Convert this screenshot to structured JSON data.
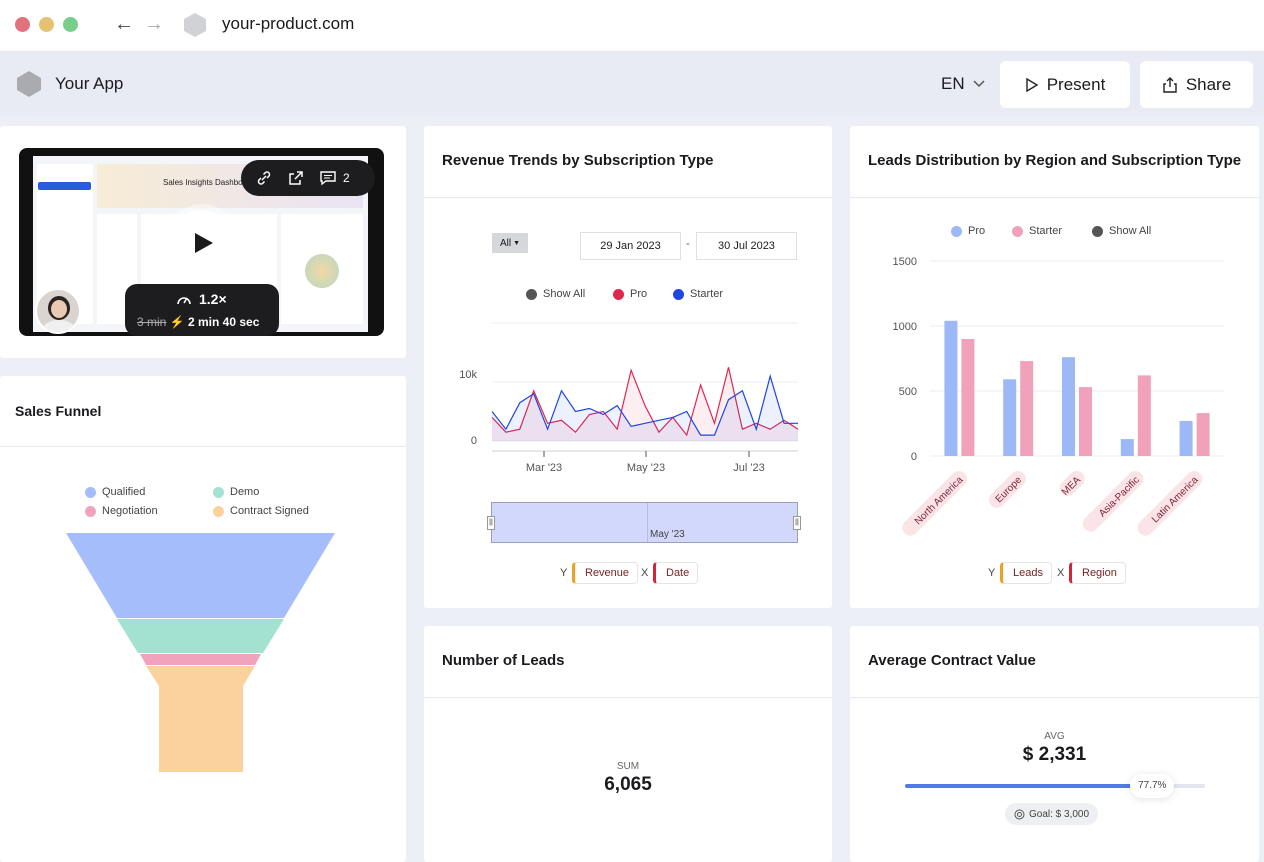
{
  "browser": {
    "url": "your-product.com"
  },
  "header": {
    "app_name": "Your App",
    "language": "EN",
    "present_label": "Present",
    "share_label": "Share"
  },
  "video": {
    "speed": "1.2×",
    "original_duration": "3 min",
    "new_duration": "2 min 40 sec",
    "comment_count": "2",
    "thumb_title": "Sales Insights Dashbo"
  },
  "funnel": {
    "title": "Sales Funnel",
    "legend": [
      {
        "label": "Qualified",
        "color": "#a5bdfb"
      },
      {
        "label": "Demo",
        "color": "#a3e1d1"
      },
      {
        "label": "Negotiation",
        "color": "#f0a3bd"
      },
      {
        "label": "Contract Signed",
        "color": "#fbd19e"
      }
    ]
  },
  "revenue": {
    "title": "Revenue Trends by Subscription Type",
    "filter": "All",
    "date_from": "29 Jan 2023",
    "date_sep": "-",
    "date_to": "30 Jul 2023",
    "legend": [
      {
        "label": "Show All",
        "color": "#555555"
      },
      {
        "label": "Pro",
        "color": "#e0284f"
      },
      {
        "label": "Starter",
        "color": "#1f46e0"
      }
    ],
    "brush_label": "May '23",
    "y_axis_letter": "Y",
    "y_field": "Revenue",
    "x_axis_letter": "X",
    "x_field": "Date"
  },
  "leads_region": {
    "title": "Leads Distribution by Region and Subscription Type",
    "legend": [
      {
        "label": "Pro",
        "color": "#9db8f7"
      },
      {
        "label": "Starter",
        "color": "#f1a1b9"
      },
      {
        "label": "Show All",
        "color": "#555555"
      }
    ],
    "y_axis_letter": "Y",
    "y_field": "Leads",
    "x_axis_letter": "X",
    "x_field": "Region"
  },
  "num_leads": {
    "title": "Number of Leads",
    "agg": "SUM",
    "value": "6,065"
  },
  "avg_contract": {
    "title": "Average Contract Value",
    "agg": "AVG",
    "value": "$ 2,331",
    "progress_label": "77.7%",
    "progress": 0.777,
    "goal": "Goal: $ 3,000"
  },
  "chart_data": [
    {
      "type": "line",
      "title": "Revenue Trends by Subscription Type",
      "x_tick_labels": [
        "Mar '23",
        "May '23",
        "Jul '23"
      ],
      "y_tick_labels": [
        "10k",
        "0"
      ],
      "ylim": [
        0,
        20000
      ],
      "series": [
        {
          "name": "Pro",
          "color": "#e0284f",
          "values": [
            4000,
            1500,
            2000,
            8500,
            3000,
            3500,
            1500,
            4500,
            5000,
            2000,
            12000,
            6000,
            1500,
            4000,
            1000,
            9500,
            3000,
            12500,
            2000,
            3000,
            2000,
            3500,
            2000
          ]
        },
        {
          "name": "Starter",
          "color": "#1f46e0",
          "values": [
            5000,
            2000,
            6500,
            8000,
            2000,
            8500,
            5000,
            5500,
            4500,
            6000,
            2500,
            3000,
            3500,
            4000,
            5000,
            1000,
            1000,
            7000,
            8500,
            2000,
            11000,
            3000,
            3000
          ]
        }
      ]
    },
    {
      "type": "bar",
      "title": "Leads Distribution by Region and Subscription Type",
      "categories": [
        "North America",
        "Europe",
        "MEA",
        "Asia-Pacific",
        "Latin America"
      ],
      "ylim": [
        0,
        1500
      ],
      "y_ticks": [
        1500,
        1000,
        500,
        0
      ],
      "series": [
        {
          "name": "Pro",
          "color": "#9db8f7",
          "values": [
            1040,
            590,
            760,
            130,
            270
          ]
        },
        {
          "name": "Starter",
          "color": "#f1a1b9",
          "values": [
            900,
            730,
            530,
            620,
            330
          ]
        }
      ]
    }
  ]
}
